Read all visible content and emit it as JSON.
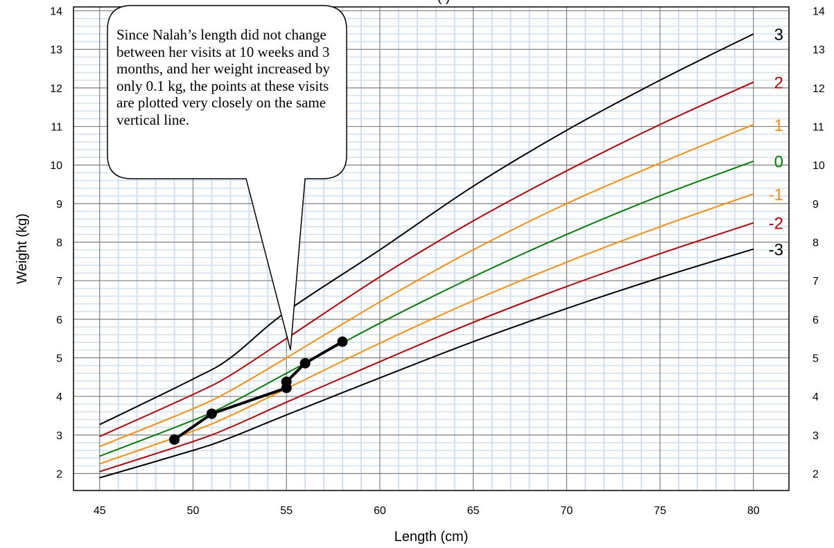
{
  "chart_data": {
    "type": "line",
    "title": "(                 )",
    "xlabel": "Length (cm)",
    "ylabel": "Weight (kg)",
    "xlim": [
      43.6,
      81.9
    ],
    "ylim": [
      1.56,
      14.1
    ],
    "x_ticks": [
      "45",
      "50",
      "55",
      "60",
      "65",
      "70",
      "75",
      "80"
    ],
    "y_ticks": [
      "2",
      "3",
      "4",
      "5",
      "6",
      "7",
      "8",
      "9",
      "10",
      "11",
      "12",
      "13",
      "14"
    ],
    "grid": true,
    "legend": "curve labels at right end of lines",
    "series": [
      {
        "name": "3",
        "color": "#000000",
        "x": [
          45,
          50,
          52,
          55,
          60,
          65,
          70,
          75,
          80
        ],
        "y": [
          3.27,
          4.45,
          5.0,
          6.2,
          7.8,
          9.45,
          10.9,
          12.2,
          13.4
        ]
      },
      {
        "name": "2",
        "color": "#c00000",
        "x": [
          45,
          50,
          52,
          55,
          60,
          65,
          70,
          75,
          80
        ],
        "y": [
          2.96,
          4.05,
          4.55,
          5.5,
          7.1,
          8.55,
          9.85,
          11.05,
          12.15
        ]
      },
      {
        "name": "1",
        "color": "#ff8c00",
        "x": [
          45,
          50,
          52,
          55,
          60,
          65,
          70,
          75,
          80
        ],
        "y": [
          2.7,
          3.68,
          4.15,
          5.0,
          6.45,
          7.8,
          9.0,
          10.05,
          11.05
        ]
      },
      {
        "name": "0",
        "color": "#008000",
        "x": [
          45,
          50,
          52,
          55,
          60,
          65,
          70,
          75,
          80
        ],
        "y": [
          2.45,
          3.38,
          3.82,
          4.6,
          5.9,
          7.1,
          8.2,
          9.2,
          10.1
        ]
      },
      {
        "name": "-1",
        "color": "#ff8c00",
        "x": [
          45,
          50,
          52,
          55,
          60,
          65,
          70,
          75,
          80
        ],
        "y": [
          2.25,
          3.1,
          3.5,
          4.2,
          5.38,
          6.48,
          7.48,
          8.4,
          9.25
        ]
      },
      {
        "name": "-2",
        "color": "#c00000",
        "x": [
          45,
          50,
          52,
          55,
          60,
          65,
          70,
          75,
          80
        ],
        "y": [
          2.05,
          2.83,
          3.2,
          3.85,
          4.9,
          5.92,
          6.85,
          7.7,
          8.5
        ]
      },
      {
        "name": "-3",
        "color": "#000000",
        "x": [
          45,
          50,
          52,
          55,
          60,
          65,
          70,
          75,
          80
        ],
        "y": [
          1.89,
          2.6,
          2.93,
          3.52,
          4.48,
          5.42,
          6.28,
          7.08,
          7.82
        ]
      }
    ],
    "child_points": {
      "color": "#000000",
      "x": [
        49,
        51,
        55,
        55,
        56,
        58
      ],
      "y": [
        2.88,
        3.55,
        4.22,
        4.38,
        4.86,
        5.42
      ]
    },
    "annotation": "Since Nalah’s length did not change between her visits at 10 weeks and 3 months, and her weight increased by only 0.1 kg, the points at these visits are plotted very closely on the same vertical line."
  }
}
